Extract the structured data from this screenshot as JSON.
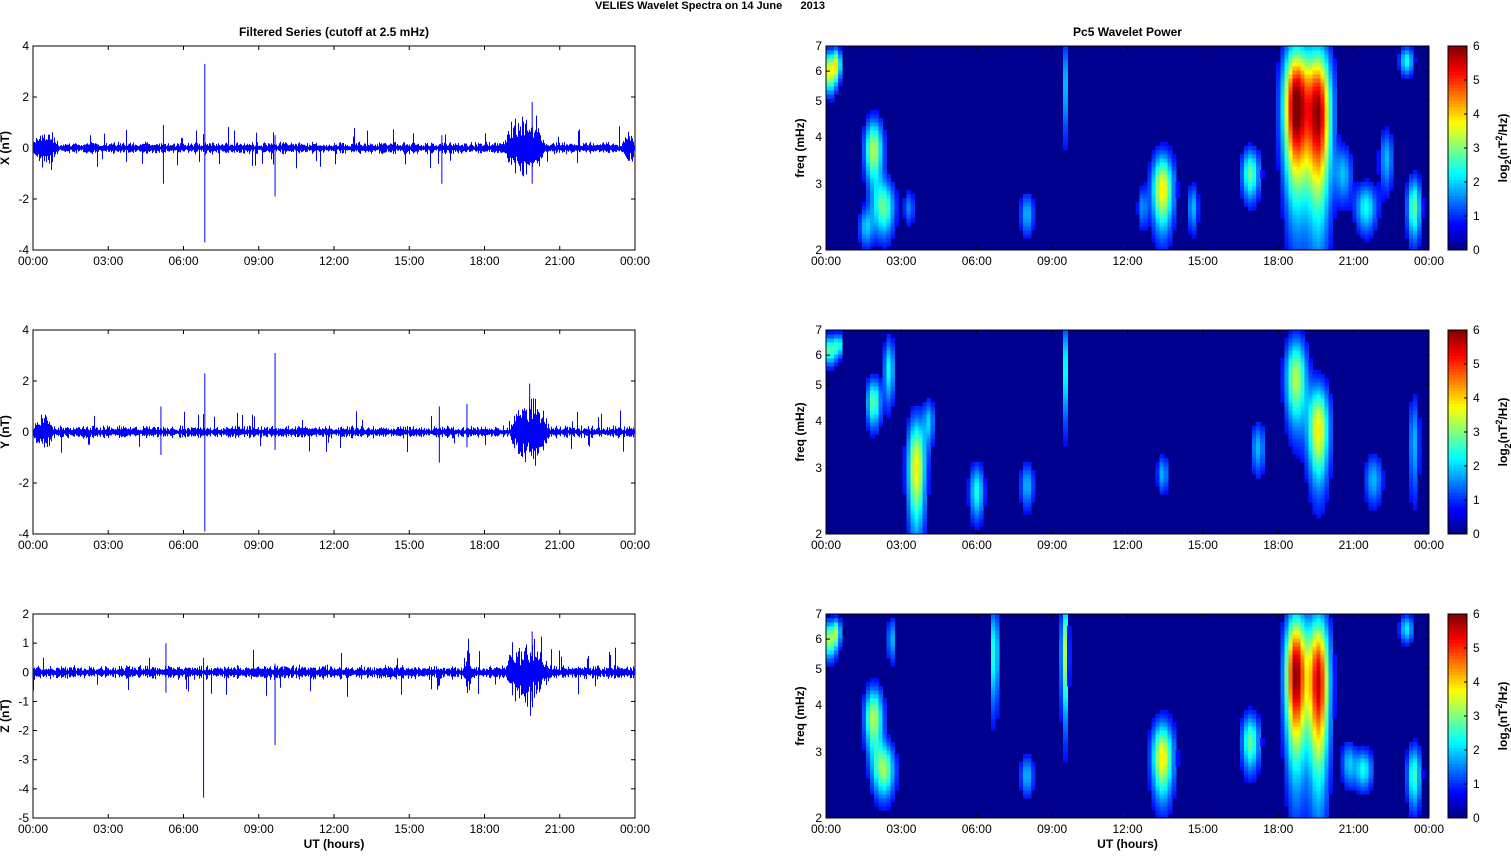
{
  "figure_title": "VELIES Wavelet Spectra on 14 June      2013",
  "colors": {
    "trace": "#0000ff",
    "spectrogram_background": "#00008f",
    "axes": "#000000"
  },
  "chart_data": [
    {
      "type": "line",
      "panel": "X",
      "title": "Filtered Series (cutoff at 2.5 mHz)",
      "ylabel": "X (nT)",
      "xlabel": "",
      "ylim": [
        -4,
        4
      ],
      "yticks": [
        4,
        2,
        0,
        -2,
        -4
      ],
      "xlim_hours": [
        0,
        24
      ],
      "xticks": [
        "00:00",
        "03:00",
        "06:00",
        "09:00",
        "12:00",
        "15:00",
        "18:00",
        "21:00",
        "00:00"
      ],
      "noise_amplitude": 0.15,
      "bursts": [
        {
          "start_hour": 18.8,
          "end_hour": 20.4,
          "amplitude": 0.9
        },
        {
          "start_hour": 0.0,
          "end_hour": 1.0,
          "amplitude": 0.4
        },
        {
          "start_hour": 23.5,
          "end_hour": 24.0,
          "amplitude": 0.4
        }
      ],
      "spikes": [
        {
          "hour": 5.2,
          "min": -1.4,
          "max": 0.9
        },
        {
          "hour": 6.85,
          "min": -3.7,
          "max": 3.3
        },
        {
          "hour": 9.65,
          "min": -1.9,
          "max": 0.5
        },
        {
          "hour": 16.3,
          "min": -1.4,
          "max": 0.5
        },
        {
          "hour": 19.9,
          "min": -1.4,
          "max": 1.8
        }
      ]
    },
    {
      "type": "line",
      "panel": "Y",
      "title": "",
      "ylabel": "Y (nT)",
      "xlabel": "",
      "ylim": [
        -4,
        4
      ],
      "yticks": [
        4,
        2,
        0,
        -2,
        -4
      ],
      "xlim_hours": [
        0,
        24
      ],
      "xticks": [
        "00:00",
        "03:00",
        "06:00",
        "09:00",
        "12:00",
        "15:00",
        "18:00",
        "21:00",
        "00:00"
      ],
      "noise_amplitude": 0.15,
      "bursts": [
        {
          "start_hour": 19.0,
          "end_hour": 20.6,
          "amplitude": 0.9
        },
        {
          "start_hour": 0.0,
          "end_hour": 0.8,
          "amplitude": 0.4
        }
      ],
      "spikes": [
        {
          "hour": 5.1,
          "min": -0.9,
          "max": 1.0
        },
        {
          "hour": 6.85,
          "min": -3.9,
          "max": 2.3
        },
        {
          "hour": 9.65,
          "min": -0.7,
          "max": 3.1
        },
        {
          "hour": 16.2,
          "min": -1.2,
          "max": 1.0
        },
        {
          "hour": 17.3,
          "min": -0.6,
          "max": 1.1
        },
        {
          "hour": 19.8,
          "min": -0.8,
          "max": 1.9
        }
      ]
    },
    {
      "type": "line",
      "panel": "Z",
      "title": "",
      "ylabel": "Z (nT)",
      "xlabel": "UT (hours)",
      "ylim": [
        -5,
        2
      ],
      "yticks": [
        2,
        1,
        0,
        -1,
        -2,
        -3,
        -4,
        -5
      ],
      "xlim_hours": [
        0,
        24
      ],
      "xticks": [
        "00:00",
        "03:00",
        "06:00",
        "09:00",
        "12:00",
        "15:00",
        "18:00",
        "21:00",
        "00:00"
      ],
      "noise_amplitude": 0.15,
      "bursts": [
        {
          "start_hour": 18.8,
          "end_hour": 20.6,
          "amplitude": 0.7
        },
        {
          "start_hour": 17.2,
          "end_hour": 17.5,
          "amplitude": 0.5
        }
      ],
      "spikes": [
        {
          "hour": 5.3,
          "min": -0.7,
          "max": 1.0
        },
        {
          "hour": 6.8,
          "min": -4.3,
          "max": 0.5
        },
        {
          "hour": 9.65,
          "min": -2.5,
          "max": 0.3
        },
        {
          "hour": 19.9,
          "min": -1.0,
          "max": 1.4
        }
      ]
    },
    {
      "type": "heatmap",
      "panel": "X",
      "title": "Pc5 Wavelet Power",
      "ylabel": "freq (mHz)",
      "xlabel": "",
      "yscale": "log",
      "ylim_mhz": [
        2,
        7
      ],
      "yticks": [
        7,
        6,
        5,
        4,
        3,
        2
      ],
      "xlim_hours": [
        0,
        24
      ],
      "xticks": [
        "00:00",
        "03:00",
        "06:00",
        "09:00",
        "12:00",
        "15:00",
        "18:00",
        "21:00",
        "00:00"
      ],
      "colorbar_label": "log2(nT2/Hz)",
      "colorbar_ticks": [
        6,
        5,
        4,
        3,
        2,
        1,
        0
      ],
      "clim": [
        0,
        6
      ],
      "blobs": [
        {
          "hour": 0.15,
          "freq_center": 6.0,
          "hour_width": 0.2,
          "freq_span": 1.3,
          "level": 3.5
        },
        {
          "hour": 0.45,
          "freq_center": 6.3,
          "hour_width": 0.1,
          "freq_span": 1.0,
          "level": 2.5
        },
        {
          "hour": 1.9,
          "freq_center": 3.7,
          "hour_width": 0.25,
          "freq_span": 1.3,
          "level": 3.0
        },
        {
          "hour": 2.3,
          "freq_center": 2.6,
          "hour_width": 0.3,
          "freq_span": 0.8,
          "level": 2.5
        },
        {
          "hour": 1.6,
          "freq_center": 2.3,
          "hour_width": 0.2,
          "freq_span": 0.5,
          "level": 1.5
        },
        {
          "hour": 3.3,
          "freq_center": 2.6,
          "hour_width": 0.15,
          "freq_span": 0.5,
          "level": 1.2
        },
        {
          "hour": 8.0,
          "freq_center": 2.5,
          "hour_width": 0.2,
          "freq_span": 0.6,
          "level": 1.5
        },
        {
          "hour": 9.5,
          "freq_center": 5.5,
          "hour_width": 0.08,
          "freq_span": 3.0,
          "level": 1.5
        },
        {
          "hour": 13.4,
          "freq_center": 2.9,
          "hour_width": 0.3,
          "freq_span": 1.2,
          "level": 3.5
        },
        {
          "hour": 12.6,
          "freq_center": 2.6,
          "hour_width": 0.15,
          "freq_span": 0.6,
          "level": 1.2
        },
        {
          "hour": 14.6,
          "freq_center": 2.6,
          "hour_width": 0.15,
          "freq_span": 0.7,
          "level": 1.5
        },
        {
          "hour": 16.9,
          "freq_center": 3.2,
          "hour_width": 0.25,
          "freq_span": 0.9,
          "level": 2.5
        },
        {
          "hour": 18.7,
          "freq_center": 4.8,
          "hour_width": 0.35,
          "freq_span": 3.6,
          "level": 5.8
        },
        {
          "hour": 19.6,
          "freq_center": 4.6,
          "hour_width": 0.35,
          "freq_span": 3.8,
          "level": 5.4
        },
        {
          "hour": 20.6,
          "freq_center": 3.2,
          "hour_width": 0.25,
          "freq_span": 1.0,
          "level": 1.5
        },
        {
          "hour": 21.5,
          "freq_center": 2.6,
          "hour_width": 0.3,
          "freq_span": 0.7,
          "level": 2.0
        },
        {
          "hour": 22.3,
          "freq_center": 3.5,
          "hour_width": 0.2,
          "freq_span": 1.2,
          "level": 1.5
        },
        {
          "hour": 23.4,
          "freq_center": 2.6,
          "hour_width": 0.2,
          "freq_span": 0.9,
          "level": 2.5
        },
        {
          "hour": 23.1,
          "freq_center": 6.4,
          "hour_width": 0.2,
          "freq_span": 1.0,
          "level": 2.0
        }
      ]
    },
    {
      "type": "heatmap",
      "panel": "Y",
      "title": "",
      "ylabel": "freq (mHz)",
      "xlabel": "",
      "yscale": "log",
      "ylim_mhz": [
        2,
        7
      ],
      "yticks": [
        7,
        6,
        5,
        4,
        3,
        2
      ],
      "xlim_hours": [
        0,
        24
      ],
      "xticks": [
        "00:00",
        "03:00",
        "06:00",
        "09:00",
        "12:00",
        "15:00",
        "18:00",
        "21:00",
        "00:00"
      ],
      "colorbar_label": "log2(nT2/Hz)",
      "colorbar_ticks": [
        6,
        5,
        4,
        3,
        2,
        1,
        0
      ],
      "clim": [
        0,
        6
      ],
      "blobs": [
        {
          "hour": 0.15,
          "freq_center": 6.2,
          "hour_width": 0.2,
          "freq_span": 1.0,
          "level": 2.5
        },
        {
          "hour": 0.5,
          "freq_center": 6.4,
          "hour_width": 0.1,
          "freq_span": 0.8,
          "level": 2.0
        },
        {
          "hour": 1.9,
          "freq_center": 4.5,
          "hour_width": 0.2,
          "freq_span": 1.2,
          "level": 2.5
        },
        {
          "hour": 2.5,
          "freq_center": 5.5,
          "hour_width": 0.15,
          "freq_span": 2.0,
          "level": 2.0
        },
        {
          "hour": 3.6,
          "freq_center": 3.0,
          "hour_width": 0.25,
          "freq_span": 1.8,
          "level": 3.5
        },
        {
          "hour": 4.1,
          "freq_center": 4.0,
          "hour_width": 0.15,
          "freq_span": 1.0,
          "level": 1.5
        },
        {
          "hour": 6.0,
          "freq_center": 2.6,
          "hour_width": 0.2,
          "freq_span": 0.8,
          "level": 2.0
        },
        {
          "hour": 8.0,
          "freq_center": 2.7,
          "hour_width": 0.2,
          "freq_span": 0.7,
          "level": 1.5
        },
        {
          "hour": 9.5,
          "freq_center": 5.5,
          "hour_width": 0.08,
          "freq_span": 3.0,
          "level": 2.0
        },
        {
          "hour": 13.4,
          "freq_center": 2.9,
          "hour_width": 0.15,
          "freq_span": 0.6,
          "level": 1.5
        },
        {
          "hour": 17.2,
          "freq_center": 3.4,
          "hour_width": 0.2,
          "freq_span": 1.0,
          "level": 1.5
        },
        {
          "hour": 18.7,
          "freq_center": 5.2,
          "hour_width": 0.3,
          "freq_span": 2.5,
          "level": 3.0
        },
        {
          "hour": 19.6,
          "freq_center": 3.8,
          "hour_width": 0.3,
          "freq_span": 2.0,
          "level": 3.5
        },
        {
          "hour": 21.8,
          "freq_center": 2.8,
          "hour_width": 0.25,
          "freq_span": 0.8,
          "level": 1.5
        },
        {
          "hour": 23.4,
          "freq_center": 3.5,
          "hour_width": 0.15,
          "freq_span": 2.0,
          "level": 1.5
        }
      ]
    },
    {
      "type": "heatmap",
      "panel": "Z",
      "title": "",
      "ylabel": "freq (mHz)",
      "xlabel": "UT (hours)",
      "yscale": "log",
      "ylim_mhz": [
        2,
        7
      ],
      "yticks": [
        7,
        6,
        5,
        4,
        3,
        2
      ],
      "xlim_hours": [
        0,
        24
      ],
      "xticks": [
        "00:00",
        "03:00",
        "06:00",
        "09:00",
        "12:00",
        "15:00",
        "18:00",
        "21:00",
        "00:00"
      ],
      "colorbar_label": "log2(nT2/Hz)",
      "colorbar_ticks": [
        6,
        5,
        4,
        3,
        2,
        1,
        0
      ],
      "clim": [
        0,
        6
      ],
      "blobs": [
        {
          "hour": 0.15,
          "freq_center": 6.0,
          "hour_width": 0.2,
          "freq_span": 1.2,
          "level": 3.0
        },
        {
          "hour": 0.45,
          "freq_center": 6.3,
          "hour_width": 0.1,
          "freq_span": 0.9,
          "level": 2.0
        },
        {
          "hour": 1.9,
          "freq_center": 3.7,
          "hour_width": 0.25,
          "freq_span": 1.3,
          "level": 3.0
        },
        {
          "hour": 2.3,
          "freq_center": 2.7,
          "hour_width": 0.3,
          "freq_span": 0.8,
          "level": 2.8
        },
        {
          "hour": 2.6,
          "freq_center": 6.0,
          "hour_width": 0.12,
          "freq_span": 1.5,
          "level": 1.5
        },
        {
          "hour": 6.7,
          "freq_center": 5.5,
          "hour_width": 0.1,
          "freq_span": 3.0,
          "level": 2.5
        },
        {
          "hour": 8.0,
          "freq_center": 2.6,
          "hour_width": 0.2,
          "freq_span": 0.6,
          "level": 1.5
        },
        {
          "hour": 9.5,
          "freq_center": 5.5,
          "hour_width": 0.1,
          "freq_span": 3.5,
          "level": 3.0
        },
        {
          "hour": 13.4,
          "freq_center": 2.9,
          "hour_width": 0.3,
          "freq_span": 1.2,
          "level": 3.5
        },
        {
          "hour": 16.9,
          "freq_center": 3.2,
          "hour_width": 0.25,
          "freq_span": 1.0,
          "level": 2.5
        },
        {
          "hour": 18.7,
          "freq_center": 4.8,
          "hour_width": 0.3,
          "freq_span": 3.6,
          "level": 5.6
        },
        {
          "hour": 19.6,
          "freq_center": 4.6,
          "hour_width": 0.3,
          "freq_span": 3.8,
          "level": 5.2
        },
        {
          "hour": 20.8,
          "freq_center": 2.8,
          "hour_width": 0.2,
          "freq_span": 0.7,
          "level": 1.5
        },
        {
          "hour": 21.4,
          "freq_center": 2.7,
          "hour_width": 0.25,
          "freq_span": 0.6,
          "level": 2.0
        },
        {
          "hour": 23.4,
          "freq_center": 2.6,
          "hour_width": 0.2,
          "freq_span": 0.9,
          "level": 2.3
        },
        {
          "hour": 23.1,
          "freq_center": 6.4,
          "hour_width": 0.2,
          "freq_span": 1.0,
          "level": 1.8
        }
      ]
    }
  ]
}
